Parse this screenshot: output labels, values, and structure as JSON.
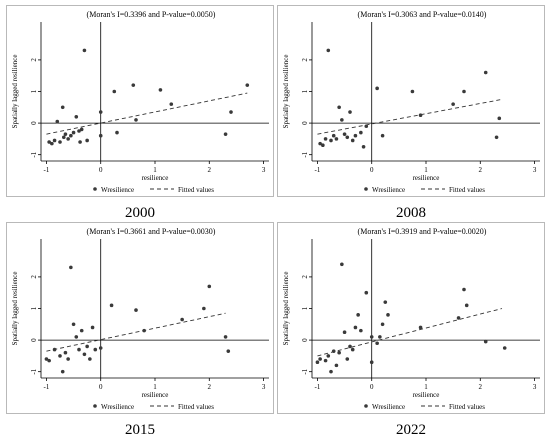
{
  "chart_data": [
    {
      "type": "scatter",
      "year": "2000",
      "title": "(Moran's I=0.3396 and P-value=0.0050)",
      "xlabel": "resilience",
      "ylabel": "Spatially lagged resilience",
      "xticks": [
        "-1",
        "0",
        "1",
        "2",
        "3"
      ],
      "yticks": [
        "-1",
        "0",
        "1",
        "2"
      ],
      "xlim": [
        -1.1,
        3.1
      ],
      "ylim": [
        -1.2,
        3.2
      ],
      "legend": {
        "points": "Wresilience",
        "line": "Fitted values",
        "position": "bottom"
      },
      "fit": {
        "x": [
          -1,
          2.7
        ],
        "y": [
          -0.35,
          0.95
        ]
      },
      "points": [
        [
          -0.95,
          -0.6
        ],
        [
          -0.9,
          -0.65
        ],
        [
          -0.85,
          -0.55
        ],
        [
          -0.8,
          0.05
        ],
        [
          -0.75,
          -0.6
        ],
        [
          -0.7,
          0.5
        ],
        [
          -0.68,
          -0.45
        ],
        [
          -0.65,
          -0.35
        ],
        [
          -0.6,
          -0.5
        ],
        [
          -0.55,
          -0.4
        ],
        [
          -0.5,
          -0.3
        ],
        [
          -0.45,
          0.2
        ],
        [
          -0.4,
          -0.25
        ],
        [
          -0.38,
          -0.6
        ],
        [
          -0.35,
          -0.2
        ],
        [
          -0.3,
          2.3
        ],
        [
          -0.25,
          -0.55
        ],
        [
          0.0,
          0.35
        ],
        [
          0.0,
          -0.4
        ],
        [
          0.3,
          -0.3
        ],
        [
          0.25,
          1.0
        ],
        [
          0.6,
          1.2
        ],
        [
          0.65,
          0.1
        ],
        [
          1.1,
          1.05
        ],
        [
          1.3,
          0.6
        ],
        [
          2.3,
          -0.35
        ],
        [
          2.4,
          0.35
        ],
        [
          2.7,
          1.2
        ]
      ]
    },
    {
      "type": "scatter",
      "year": "2008",
      "title": "(Moran's I=0.3063 and P-value=0.0140)",
      "xlabel": "resilience",
      "ylabel": "Spatially lagged resilience",
      "xticks": [
        "-1",
        "0",
        "1",
        "2",
        "3"
      ],
      "yticks": [
        "-1",
        "0",
        "1",
        "2"
      ],
      "xlim": [
        -1.1,
        3.1
      ],
      "ylim": [
        -1.2,
        3.2
      ],
      "legend": {
        "points": "Wresilience",
        "line": "Fitted values",
        "position": "bottom"
      },
      "fit": {
        "x": [
          -1,
          2.4
        ],
        "y": [
          -0.35,
          0.75
        ]
      },
      "points": [
        [
          -0.95,
          -0.65
        ],
        [
          -0.9,
          -0.7
        ],
        [
          -0.85,
          -0.5
        ],
        [
          -0.8,
          2.3
        ],
        [
          -0.75,
          -0.55
        ],
        [
          -0.7,
          -0.4
        ],
        [
          -0.65,
          -0.5
        ],
        [
          -0.6,
          0.5
        ],
        [
          -0.55,
          0.1
        ],
        [
          -0.5,
          -0.35
        ],
        [
          -0.45,
          -0.45
        ],
        [
          -0.4,
          0.35
        ],
        [
          -0.35,
          -0.55
        ],
        [
          -0.3,
          -0.4
        ],
        [
          -0.2,
          -0.3
        ],
        [
          -0.15,
          -0.75
        ],
        [
          -0.1,
          -0.1
        ],
        [
          0.1,
          1.1
        ],
        [
          0.2,
          -0.4
        ],
        [
          0.75,
          1.0
        ],
        [
          0.9,
          0.25
        ],
        [
          1.5,
          0.6
        ],
        [
          1.7,
          1.0
        ],
        [
          2.1,
          1.6
        ],
        [
          2.3,
          -0.45
        ],
        [
          2.35,
          0.15
        ]
      ]
    },
    {
      "type": "scatter",
      "year": "2015",
      "title": "(Moran's I=0.3661 and P-value=0.0030)",
      "xlabel": "resilience",
      "ylabel": "Spatially lagged resilience",
      "xticks": [
        "-1",
        "0",
        "1",
        "2",
        "3"
      ],
      "yticks": [
        "-1",
        "0",
        "1",
        "2"
      ],
      "xlim": [
        -1.1,
        3.1
      ],
      "ylim": [
        -1.2,
        3.2
      ],
      "legend": {
        "points": "Wresilience",
        "line": "Fitted values",
        "position": "bottom"
      },
      "fit": {
        "x": [
          -1,
          2.3
        ],
        "y": [
          -0.35,
          0.85
        ]
      },
      "points": [
        [
          -1.0,
          -0.6
        ],
        [
          -0.95,
          -0.65
        ],
        [
          -0.85,
          -0.3
        ],
        [
          -0.75,
          -0.5
        ],
        [
          -0.7,
          -1.0
        ],
        [
          -0.65,
          -0.4
        ],
        [
          -0.6,
          -0.6
        ],
        [
          -0.55,
          2.3
        ],
        [
          -0.5,
          0.5
        ],
        [
          -0.45,
          0.1
        ],
        [
          -0.4,
          -0.3
        ],
        [
          -0.35,
          0.3
        ],
        [
          -0.3,
          -0.45
        ],
        [
          -0.25,
          -0.2
        ],
        [
          -0.2,
          -0.6
        ],
        [
          -0.15,
          0.4
        ],
        [
          -0.1,
          -0.3
        ],
        [
          0.0,
          -0.25
        ],
        [
          0.2,
          1.1
        ],
        [
          0.65,
          0.95
        ],
        [
          0.8,
          0.3
        ],
        [
          1.5,
          0.65
        ],
        [
          1.9,
          1.0
        ],
        [
          2.0,
          1.7
        ],
        [
          2.3,
          0.1
        ],
        [
          2.35,
          -0.35
        ]
      ]
    },
    {
      "type": "scatter",
      "year": "2022",
      "title": "(Moran's I=0.3919 and P-value=0.0020)",
      "xlabel": "resilience",
      "ylabel": "Spatially lagged resilience",
      "xticks": [
        "-1",
        "0",
        "1",
        "2",
        "3"
      ],
      "yticks": [
        "-1",
        "0",
        "1",
        "2"
      ],
      "xlim": [
        -1.1,
        3.1
      ],
      "ylim": [
        -1.2,
        3.2
      ],
      "legend": {
        "points": "Wresilience",
        "line": "Fitted values",
        "position": "bottom"
      },
      "fit": {
        "x": [
          -1,
          2.4
        ],
        "y": [
          -0.5,
          1.0
        ]
      },
      "points": [
        [
          -1.0,
          -0.7
        ],
        [
          -0.95,
          -0.6
        ],
        [
          -0.85,
          -0.65
        ],
        [
          -0.8,
          -0.5
        ],
        [
          -0.75,
          -1.0
        ],
        [
          -0.7,
          -0.35
        ],
        [
          -0.65,
          -0.8
        ],
        [
          -0.6,
          -0.4
        ],
        [
          -0.55,
          2.4
        ],
        [
          -0.5,
          0.25
        ],
        [
          -0.45,
          -0.6
        ],
        [
          -0.4,
          -0.2
        ],
        [
          -0.35,
          -0.3
        ],
        [
          -0.3,
          0.4
        ],
        [
          -0.25,
          0.8
        ],
        [
          -0.2,
          0.3
        ],
        [
          -0.1,
          1.5
        ],
        [
          0.0,
          0.1
        ],
        [
          0.0,
          -0.7
        ],
        [
          0.1,
          -0.1
        ],
        [
          0.15,
          0.1
        ],
        [
          0.2,
          0.5
        ],
        [
          0.25,
          1.2
        ],
        [
          0.3,
          0.8
        ],
        [
          0.9,
          0.4
        ],
        [
          1.6,
          0.7
        ],
        [
          1.7,
          1.6
        ],
        [
          1.75,
          1.1
        ],
        [
          2.1,
          -0.05
        ],
        [
          2.45,
          -0.25
        ]
      ]
    }
  ]
}
